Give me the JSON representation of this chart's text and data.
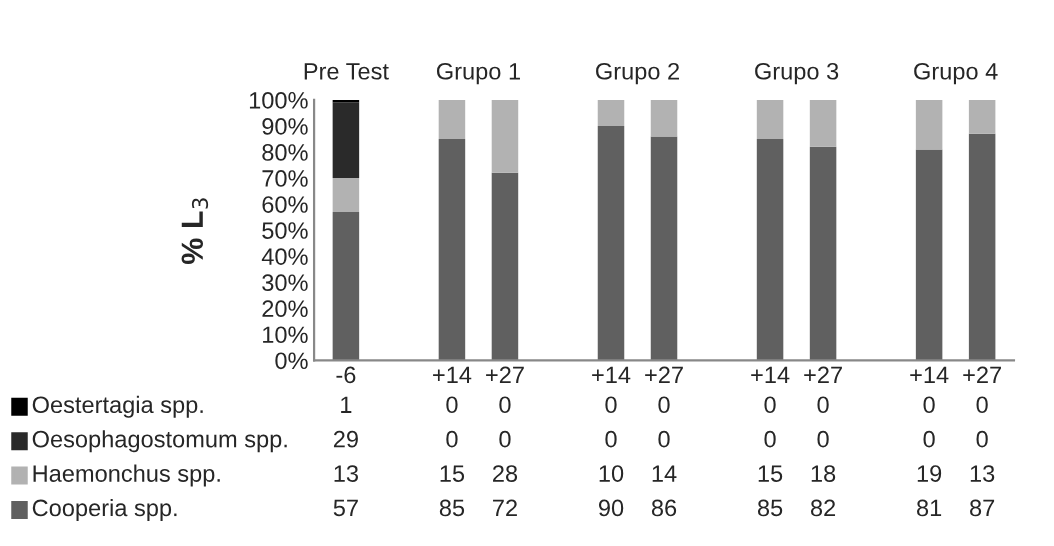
{
  "chart_data": {
    "type": "bar",
    "stacked": true,
    "ylabel": "% L$_{3}$",
    "categories": [
      "-6",
      null,
      "+14",
      "+27",
      null,
      "+14",
      "+27",
      null,
      "+14",
      "+27",
      null,
      "+14",
      "+27"
    ],
    "series": [
      {
        "name": "Cooperia spp.",
        "color": "#606060",
        "values": [
          57,
          null,
          85,
          72,
          null,
          90,
          86,
          null,
          85,
          82,
          null,
          81,
          87
        ]
      },
      {
        "name": "Haemonchus spp.",
        "color": "#b2b2b2",
        "values": [
          13,
          null,
          15,
          28,
          null,
          10,
          14,
          null,
          15,
          18,
          null,
          19,
          13
        ]
      },
      {
        "name": "Oesophagostomum spp.",
        "color": "#2a2a2a",
        "values": [
          29,
          null,
          0,
          0,
          null,
          0,
          0,
          null,
          0,
          0,
          null,
          0,
          0
        ]
      },
      {
        "name": "Oestertagia spp.",
        "color": "#000000",
        "values": [
          1,
          null,
          0,
          0,
          null,
          0,
          0,
          null,
          0,
          0,
          null,
          0,
          0
        ]
      }
    ],
    "annotations": [
      "Pre Test",
      "Grupo 1",
      "Grupo 2",
      "Grupo 3",
      "Grupo 4"
    ],
    "ylim": [
      0,
      100
    ],
    "yticks": [
      {
        "value": 0,
        "label": "0%"
      },
      {
        "value": 10,
        "label": "10%"
      },
      {
        "value": 20,
        "label": "20%"
      },
      {
        "value": 30,
        "label": "30%"
      },
      {
        "value": 40,
        "label": "40%"
      },
      {
        "value": 50,
        "label": "50%"
      },
      {
        "value": 60,
        "label": "60%"
      },
      {
        "value": 70,
        "label": "70%"
      },
      {
        "value": 80,
        "label": "80%"
      },
      {
        "value": 90,
        "label": "90%"
      },
      {
        "value": 100,
        "label": "100%"
      }
    ],
    "data_labels": true,
    "legend": "bottom",
    "grid": false
  }
}
